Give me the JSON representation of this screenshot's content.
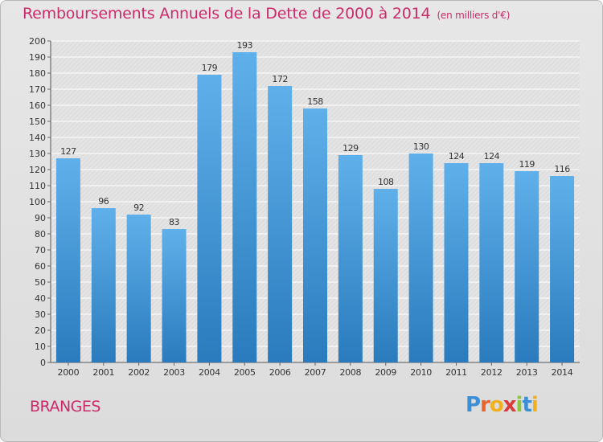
{
  "header": {
    "title": "Remboursements Annuels de la Dette de 2000 à 2014",
    "unit": "(en milliers d'€)"
  },
  "commune": "BRANGES",
  "logo": {
    "text": "Proxiti",
    "letters": [
      {
        "ch": "P",
        "color": "#3a8fd6"
      },
      {
        "ch": "r",
        "color": "#e8642c"
      },
      {
        "ch": "o",
        "color": "#f2b01e"
      },
      {
        "ch": "x",
        "color": "#d93a3a"
      },
      {
        "ch": "i",
        "color": "#8cc63f"
      },
      {
        "ch": "t",
        "color": "#3a8fd6"
      },
      {
        "ch": "i",
        "color": "#f2b01e"
      }
    ]
  },
  "colors": {
    "bar_light": "#5fb0ea",
    "bar_dark": "#2a7bbd",
    "grid": "#ffffff",
    "plot_bg": "#e4e4e4",
    "title": "#cc2a6b"
  },
  "chart_data": {
    "type": "bar",
    "categories": [
      "2000",
      "2001",
      "2002",
      "2003",
      "2004",
      "2005",
      "2006",
      "2007",
      "2008",
      "2009",
      "2010",
      "2011",
      "2012",
      "2013",
      "2014"
    ],
    "values": [
      127,
      96,
      92,
      83,
      179,
      193,
      172,
      158,
      129,
      108,
      130,
      124,
      124,
      119,
      116
    ],
    "ylim": [
      0,
      200
    ],
    "yticks": [
      0,
      10,
      20,
      30,
      40,
      50,
      60,
      70,
      80,
      90,
      100,
      110,
      120,
      130,
      140,
      150,
      160,
      170,
      180,
      190,
      200
    ],
    "grid": true,
    "data_labels": true
  }
}
